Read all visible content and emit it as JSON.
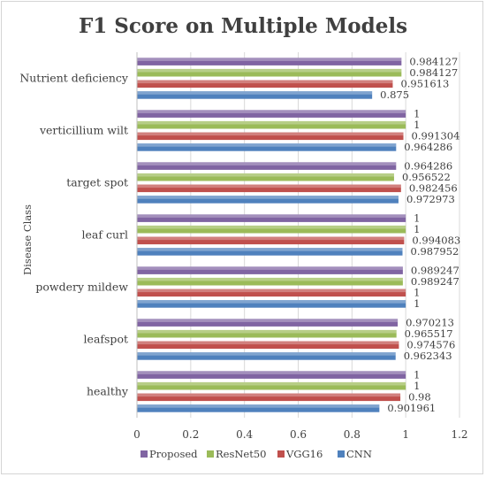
{
  "chart_data": {
    "type": "bar",
    "orientation": "horizontal",
    "title": "F1 Score on Multiple Models",
    "xlabel": "",
    "ylabel": "Disease Class",
    "xlim": [
      0,
      1.2
    ],
    "xticks": [
      "0",
      "0.2",
      "0.4",
      "0.6",
      "0.8",
      "1",
      "1.2"
    ],
    "grid": "vertical",
    "legend_position": "bottom",
    "categories": [
      "Nutrient deficiency",
      "verticillium wilt",
      "target spot",
      "leaf curl",
      "powdery mildew",
      "leafspot",
      "healthy"
    ],
    "series": [
      {
        "name": "Proposed",
        "color": "#8064a2",
        "values": [
          0.984127,
          1,
          0.964286,
          1,
          0.989247,
          0.970213,
          1
        ],
        "labels": [
          "0.984127",
          "1",
          "0.964286",
          "1",
          "0.989247",
          "0.970213",
          "1"
        ]
      },
      {
        "name": "ResNet50",
        "color": "#9bbb59",
        "values": [
          0.984127,
          1,
          0.956522,
          1,
          0.989247,
          0.965517,
          1
        ],
        "labels": [
          "0.984127",
          "1",
          "0.956522",
          "1",
          "0.989247",
          "0.965517",
          "1"
        ]
      },
      {
        "name": "VGG16",
        "color": "#c0504d",
        "values": [
          0.951613,
          0.991304,
          0.982456,
          0.994083,
          1,
          0.974576,
          0.98
        ],
        "labels": [
          "0.951613",
          "0.991304",
          "0.982456",
          "0.994083",
          "1",
          "0.974576",
          "0.98"
        ]
      },
      {
        "name": "CNN",
        "color": "#4f81bd",
        "values": [
          0.875,
          0.964286,
          0.972973,
          0.987952,
          1,
          0.962343,
          0.901961
        ],
        "labels": [
          "0.875",
          "0.964286",
          "0.972973",
          "0.987952",
          "1",
          "0.962343",
          "0.901961"
        ]
      }
    ]
  }
}
